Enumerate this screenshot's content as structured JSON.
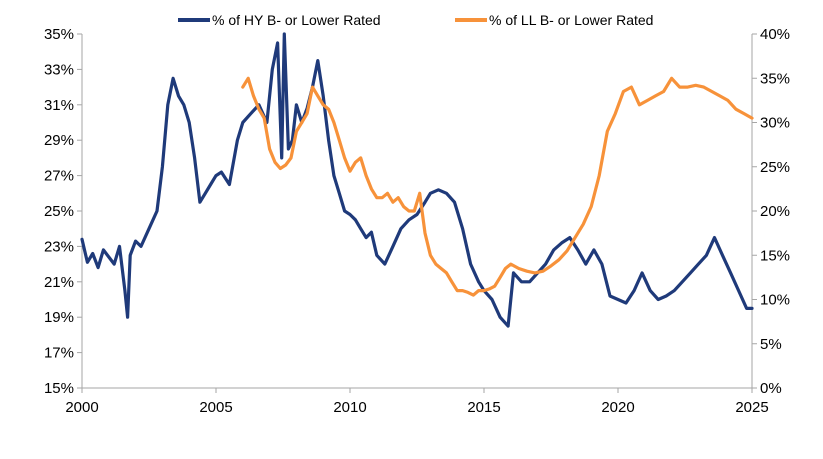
{
  "chart_data": {
    "type": "line",
    "title": "",
    "xlabel": "",
    "ylabel": "",
    "y2label": "",
    "xlim": [
      2000,
      2025
    ],
    "ylim": [
      15,
      35
    ],
    "y2lim": [
      0,
      40
    ],
    "x_ticks": [
      "2000",
      "2005",
      "2010",
      "2015",
      "2020",
      "2025"
    ],
    "x_tick_values": [
      2000,
      2005,
      2010,
      2015,
      2020,
      2025
    ],
    "y_ticks": [
      "15%",
      "17%",
      "19%",
      "21%",
      "23%",
      "25%",
      "27%",
      "29%",
      "31%",
      "33%",
      "35%"
    ],
    "y_tick_values": [
      15,
      17,
      19,
      21,
      23,
      25,
      27,
      29,
      31,
      33,
      35
    ],
    "y2_ticks": [
      "0%",
      "5%",
      "10%",
      "15%",
      "20%",
      "25%",
      "30%",
      "35%",
      "40%"
    ],
    "y2_tick_values": [
      0,
      5,
      10,
      15,
      20,
      25,
      30,
      35,
      40
    ],
    "grid": false,
    "legend_position": "top",
    "series": [
      {
        "name": "% of HY B- or Lower Rated",
        "axis": "left",
        "color": "#1f3a7a",
        "x": [
          2000.0,
          2000.2,
          2000.4,
          2000.6,
          2000.8,
          2001.0,
          2001.2,
          2001.4,
          2001.6,
          2001.7,
          2001.8,
          2002.0,
          2002.2,
          2002.5,
          2002.8,
          2003.0,
          2003.2,
          2003.4,
          2003.6,
          2003.8,
          2004.0,
          2004.2,
          2004.4,
          2004.6,
          2004.8,
          2005.0,
          2005.2,
          2005.5,
          2005.8,
          2006.0,
          2006.3,
          2006.6,
          2006.9,
          2007.1,
          2007.3,
          2007.45,
          2007.55,
          2007.7,
          2007.85,
          2008.0,
          2008.2,
          2008.4,
          2008.6,
          2008.8,
          2009.0,
          2009.2,
          2009.4,
          2009.6,
          2009.8,
          2010.0,
          2010.2,
          2010.4,
          2010.6,
          2010.8,
          2011.0,
          2011.3,
          2011.6,
          2011.9,
          2012.2,
          2012.5,
          2012.8,
          2013.0,
          2013.3,
          2013.6,
          2013.9,
          2014.2,
          2014.5,
          2014.8,
          2015.0,
          2015.3,
          2015.6,
          2015.9,
          2016.1,
          2016.4,
          2016.7,
          2017.0,
          2017.3,
          2017.6,
          2017.9,
          2018.2,
          2018.5,
          2018.8,
          2019.1,
          2019.4,
          2019.7,
          2020.0,
          2020.3,
          2020.6,
          2020.9,
          2021.2,
          2021.5,
          2021.8,
          2022.1,
          2022.4,
          2022.7,
          2023.0,
          2023.3,
          2023.6,
          2023.9,
          2024.2,
          2024.5,
          2024.8,
          2025.0
        ],
        "values": [
          23.4,
          22.1,
          22.6,
          21.8,
          22.8,
          22.4,
          22.0,
          23.0,
          20.5,
          19.0,
          22.5,
          23.3,
          23.0,
          24.0,
          25.0,
          27.5,
          31.0,
          32.5,
          31.5,
          31.0,
          30.0,
          28.0,
          25.5,
          26.0,
          26.5,
          27.0,
          27.2,
          26.5,
          29.0,
          30.0,
          30.5,
          31.0,
          30.0,
          33.0,
          34.5,
          28.0,
          35.0,
          28.5,
          29.0,
          31.0,
          30.0,
          30.8,
          32.0,
          33.5,
          31.5,
          29.0,
          27.0,
          26.0,
          25.0,
          24.8,
          24.5,
          24.0,
          23.5,
          23.8,
          22.5,
          22.0,
          23.0,
          24.0,
          24.5,
          24.8,
          25.5,
          26.0,
          26.2,
          26.0,
          25.5,
          24.0,
          22.0,
          21.0,
          20.5,
          20.0,
          19.0,
          18.5,
          21.5,
          21.0,
          21.0,
          21.5,
          22.0,
          22.8,
          23.2,
          23.5,
          22.8,
          22.0,
          22.8,
          22.0,
          20.2,
          20.0,
          19.8,
          20.5,
          21.5,
          20.5,
          20.0,
          20.2,
          20.5,
          21.0,
          21.5,
          22.0,
          22.5,
          23.5,
          22.5,
          21.5,
          20.5,
          19.5,
          19.5
        ]
      },
      {
        "name": "% of LL B- or Lower Rated",
        "axis": "right",
        "color": "#f7923a",
        "x": [
          2006.0,
          2006.2,
          2006.4,
          2006.6,
          2006.8,
          2007.0,
          2007.2,
          2007.4,
          2007.6,
          2007.8,
          2008.0,
          2008.2,
          2008.4,
          2008.6,
          2008.8,
          2009.0,
          2009.2,
          2009.4,
          2009.6,
          2009.8,
          2010.0,
          2010.2,
          2010.4,
          2010.6,
          2010.8,
          2011.0,
          2011.2,
          2011.4,
          2011.6,
          2011.8,
          2012.0,
          2012.2,
          2012.4,
          2012.6,
          2012.8,
          2013.0,
          2013.2,
          2013.4,
          2013.6,
          2013.8,
          2014.0,
          2014.2,
          2014.4,
          2014.6,
          2014.8,
          2015.0,
          2015.2,
          2015.4,
          2015.6,
          2015.8,
          2016.0,
          2016.3,
          2016.6,
          2016.9,
          2017.2,
          2017.5,
          2017.8,
          2018.1,
          2018.4,
          2018.7,
          2019.0,
          2019.3,
          2019.6,
          2019.9,
          2020.2,
          2020.5,
          2020.8,
          2021.1,
          2021.4,
          2021.7,
          2022.0,
          2022.3,
          2022.6,
          2022.9,
          2023.2,
          2023.5,
          2023.8,
          2024.1,
          2024.4,
          2024.7,
          2025.0
        ],
        "values": [
          34.0,
          35.0,
          33.0,
          31.5,
          30.5,
          27.0,
          25.5,
          24.8,
          25.2,
          26.0,
          29.0,
          30.0,
          31.0,
          34.0,
          33.0,
          32.0,
          31.5,
          30.0,
          28.0,
          26.0,
          24.5,
          25.5,
          26.0,
          24.0,
          22.5,
          21.5,
          21.5,
          22.0,
          21.0,
          21.5,
          20.5,
          20.0,
          20.0,
          22.0,
          17.5,
          15.0,
          14.0,
          13.5,
          13.0,
          12.0,
          11.0,
          11.0,
          10.8,
          10.5,
          11.0,
          11.0,
          11.2,
          11.5,
          12.5,
          13.5,
          14.0,
          13.5,
          13.2,
          13.0,
          13.2,
          13.8,
          14.5,
          15.5,
          17.0,
          18.5,
          20.5,
          24.0,
          29.0,
          31.0,
          33.5,
          34.0,
          32.0,
          32.5,
          33.0,
          33.5,
          35.0,
          34.0,
          34.0,
          34.2,
          34.0,
          33.5,
          33.0,
          32.5,
          31.5,
          31.0,
          30.5
        ]
      }
    ]
  }
}
